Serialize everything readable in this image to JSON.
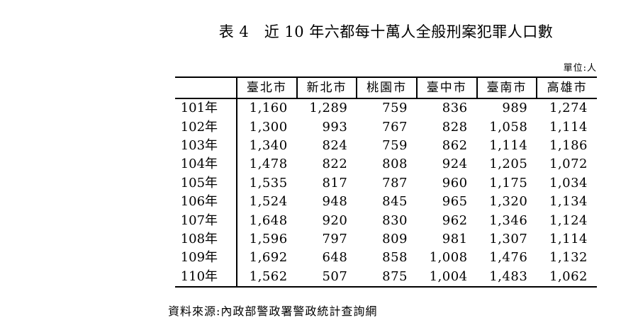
{
  "title": "表 4　近 10 年六都每十萬人全般刑案犯罪人口數",
  "unit_note": "單位:人",
  "table": {
    "row_header_label": "",
    "columns": [
      "臺北市",
      "新北市",
      "桃園市",
      "臺中市",
      "臺南市",
      "高雄市"
    ],
    "rows": [
      {
        "year": "101年",
        "values": [
          "1,160",
          "1,289",
          "759",
          "836",
          "989",
          "1,274"
        ]
      },
      {
        "year": "102年",
        "values": [
          "1,300",
          "993",
          "767",
          "828",
          "1,058",
          "1,114"
        ]
      },
      {
        "year": "103年",
        "values": [
          "1,340",
          "824",
          "759",
          "862",
          "1,114",
          "1,186"
        ]
      },
      {
        "year": "104年",
        "values": [
          "1,478",
          "822",
          "808",
          "924",
          "1,205",
          "1,072"
        ]
      },
      {
        "year": "105年",
        "values": [
          "1,535",
          "817",
          "787",
          "960",
          "1,175",
          "1,034"
        ]
      },
      {
        "year": "106年",
        "values": [
          "1,524",
          "948",
          "845",
          "965",
          "1,320",
          "1,134"
        ]
      },
      {
        "year": "107年",
        "values": [
          "1,648",
          "920",
          "830",
          "962",
          "1,346",
          "1,124"
        ]
      },
      {
        "year": "108年",
        "values": [
          "1,596",
          "797",
          "809",
          "981",
          "1,307",
          "1,114"
        ]
      },
      {
        "year": "109年",
        "values": [
          "1,692",
          "648",
          "858",
          "1,008",
          "1,476",
          "1,132"
        ]
      },
      {
        "year": "110年",
        "values": [
          "1,562",
          "507",
          "875",
          "1,004",
          "1,483",
          "1,062"
        ]
      }
    ]
  },
  "source_note": "資料來源:內政部警政署警政統計查詢網",
  "colors": {
    "background": "#ffffff",
    "text": "#000000",
    "border": "#000000"
  }
}
